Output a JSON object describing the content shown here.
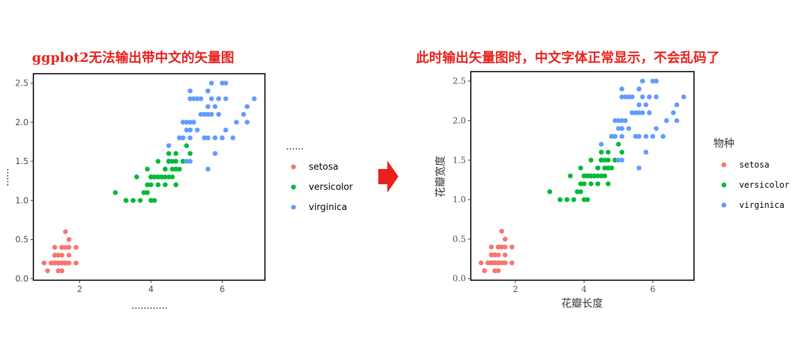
{
  "captions": {
    "left": "ggplot2无法输出带中文的矢量图",
    "right": "此时输出矢量图时，中文字体正常显示，不会乱码了"
  },
  "colors": {
    "caption": "#e8211c",
    "arrow": "#e8211c",
    "setosa": "#f8766d",
    "versicolor": "#00ba38",
    "virginica": "#619cff"
  },
  "chart_data": [
    {
      "type": "scatter",
      "title": "",
      "xlabel": "…………",
      "ylabel": "……",
      "legend_title": "……",
      "legend_position": "right",
      "grid": false,
      "xlim": [
        0.7,
        7.2
      ],
      "ylim": [
        -0.02,
        2.62
      ],
      "xticks": [
        "2",
        "4",
        "6"
      ],
      "yticks": [
        "0.0",
        "0.5",
        "1.0",
        "1.5",
        "2.0",
        "2.5"
      ],
      "legend": [
        "setosa",
        "versicolor",
        "virginica"
      ]
    },
    {
      "type": "scatter",
      "title": "",
      "xlabel": "花瓣长度",
      "ylabel": "花瓣宽度",
      "legend_title": "物种",
      "legend_position": "right",
      "grid": false,
      "xlim": [
        0.7,
        7.2
      ],
      "ylim": [
        -0.02,
        2.62
      ],
      "xticks": [
        "2",
        "4",
        "6"
      ],
      "yticks": [
        "0.0",
        "0.5",
        "1.0",
        "1.5",
        "2.0",
        "2.5"
      ],
      "legend": [
        "setosa",
        "versicolor",
        "virginica"
      ]
    }
  ],
  "series": [
    {
      "name": "setosa",
      "points": [
        [
          1.4,
          0.2
        ],
        [
          1.4,
          0.2
        ],
        [
          1.3,
          0.2
        ],
        [
          1.5,
          0.2
        ],
        [
          1.4,
          0.2
        ],
        [
          1.7,
          0.4
        ],
        [
          1.4,
          0.3
        ],
        [
          1.5,
          0.2
        ],
        [
          1.4,
          0.2
        ],
        [
          1.5,
          0.1
        ],
        [
          1.5,
          0.2
        ],
        [
          1.6,
          0.2
        ],
        [
          1.4,
          0.1
        ],
        [
          1.1,
          0.1
        ],
        [
          1.2,
          0.2
        ],
        [
          1.5,
          0.4
        ],
        [
          1.3,
          0.4
        ],
        [
          1.4,
          0.3
        ],
        [
          1.7,
          0.3
        ],
        [
          1.5,
          0.3
        ],
        [
          1.7,
          0.2
        ],
        [
          1.5,
          0.4
        ],
        [
          1.0,
          0.2
        ],
        [
          1.7,
          0.5
        ],
        [
          1.9,
          0.2
        ],
        [
          1.6,
          0.2
        ],
        [
          1.6,
          0.4
        ],
        [
          1.5,
          0.2
        ],
        [
          1.4,
          0.2
        ],
        [
          1.6,
          0.2
        ],
        [
          1.6,
          0.2
        ],
        [
          1.5,
          0.4
        ],
        [
          1.5,
          0.1
        ],
        [
          1.4,
          0.2
        ],
        [
          1.5,
          0.2
        ],
        [
          1.2,
          0.2
        ],
        [
          1.3,
          0.2
        ],
        [
          1.4,
          0.1
        ],
        [
          1.3,
          0.2
        ],
        [
          1.5,
          0.2
        ],
        [
          1.3,
          0.3
        ],
        [
          1.3,
          0.3
        ],
        [
          1.3,
          0.2
        ],
        [
          1.6,
          0.6
        ],
        [
          1.9,
          0.4
        ],
        [
          1.4,
          0.3
        ],
        [
          1.6,
          0.2
        ],
        [
          1.4,
          0.2
        ],
        [
          1.5,
          0.2
        ],
        [
          1.4,
          0.2
        ]
      ]
    },
    {
      "name": "versicolor",
      "points": [
        [
          4.7,
          1.4
        ],
        [
          4.5,
          1.5
        ],
        [
          4.9,
          1.5
        ],
        [
          4.0,
          1.3
        ],
        [
          4.6,
          1.5
        ],
        [
          4.5,
          1.3
        ],
        [
          4.7,
          1.6
        ],
        [
          3.3,
          1.0
        ],
        [
          4.6,
          1.3
        ],
        [
          3.9,
          1.4
        ],
        [
          3.5,
          1.0
        ],
        [
          4.2,
          1.5
        ],
        [
          4.0,
          1.0
        ],
        [
          4.7,
          1.4
        ],
        [
          3.6,
          1.3
        ],
        [
          4.4,
          1.4
        ],
        [
          4.5,
          1.5
        ],
        [
          4.1,
          1.0
        ],
        [
          4.5,
          1.5
        ],
        [
          3.9,
          1.1
        ],
        [
          4.8,
          1.8
        ],
        [
          4.0,
          1.3
        ],
        [
          4.9,
          1.5
        ],
        [
          4.7,
          1.2
        ],
        [
          4.3,
          1.3
        ],
        [
          4.4,
          1.4
        ],
        [
          4.8,
          1.4
        ],
        [
          5.0,
          1.7
        ],
        [
          4.5,
          1.5
        ],
        [
          3.5,
          1.0
        ],
        [
          3.8,
          1.1
        ],
        [
          3.7,
          1.0
        ],
        [
          3.9,
          1.2
        ],
        [
          5.1,
          1.6
        ],
        [
          4.5,
          1.5
        ],
        [
          4.5,
          1.6
        ],
        [
          4.7,
          1.5
        ],
        [
          4.4,
          1.3
        ],
        [
          4.1,
          1.3
        ],
        [
          4.0,
          1.3
        ],
        [
          4.4,
          1.2
        ],
        [
          4.6,
          1.4
        ],
        [
          4.0,
          1.2
        ],
        [
          3.3,
          1.0
        ],
        [
          4.2,
          1.3
        ],
        [
          4.2,
          1.2
        ],
        [
          4.2,
          1.3
        ],
        [
          4.3,
          1.3
        ],
        [
          3.0,
          1.1
        ],
        [
          4.1,
          1.3
        ]
      ]
    },
    {
      "name": "virginica",
      "points": [
        [
          6.0,
          2.5
        ],
        [
          5.1,
          1.9
        ],
        [
          5.9,
          2.1
        ],
        [
          5.6,
          1.8
        ],
        [
          5.8,
          2.2
        ],
        [
          6.6,
          2.1
        ],
        [
          4.5,
          1.7
        ],
        [
          6.3,
          1.8
        ],
        [
          5.8,
          1.8
        ],
        [
          6.1,
          2.5
        ],
        [
          5.1,
          2.0
        ],
        [
          5.3,
          1.9
        ],
        [
          5.5,
          2.1
        ],
        [
          5.0,
          2.0
        ],
        [
          5.1,
          2.4
        ],
        [
          5.3,
          2.3
        ],
        [
          5.5,
          1.8
        ],
        [
          6.7,
          2.2
        ],
        [
          6.9,
          2.3
        ],
        [
          5.0,
          1.5
        ],
        [
          5.7,
          2.3
        ],
        [
          4.9,
          2.0
        ],
        [
          6.7,
          2.0
        ],
        [
          4.9,
          1.8
        ],
        [
          5.7,
          2.1
        ],
        [
          6.0,
          1.8
        ],
        [
          4.8,
          1.8
        ],
        [
          4.9,
          1.8
        ],
        [
          5.6,
          2.1
        ],
        [
          5.8,
          1.6
        ],
        [
          6.1,
          1.9
        ],
        [
          6.4,
          2.0
        ],
        [
          5.6,
          2.2
        ],
        [
          5.1,
          1.5
        ],
        [
          5.6,
          1.4
        ],
        [
          6.1,
          2.3
        ],
        [
          5.6,
          2.4
        ],
        [
          5.5,
          1.8
        ],
        [
          4.8,
          1.8
        ],
        [
          5.4,
          2.1
        ],
        [
          5.6,
          2.4
        ],
        [
          5.1,
          2.3
        ],
        [
          5.1,
          1.9
        ],
        [
          5.9,
          2.3
        ],
        [
          5.7,
          2.5
        ],
        [
          5.2,
          2.3
        ],
        [
          5.0,
          1.9
        ],
        [
          5.2,
          2.0
        ],
        [
          5.4,
          2.3
        ],
        [
          5.1,
          1.8
        ]
      ]
    }
  ]
}
